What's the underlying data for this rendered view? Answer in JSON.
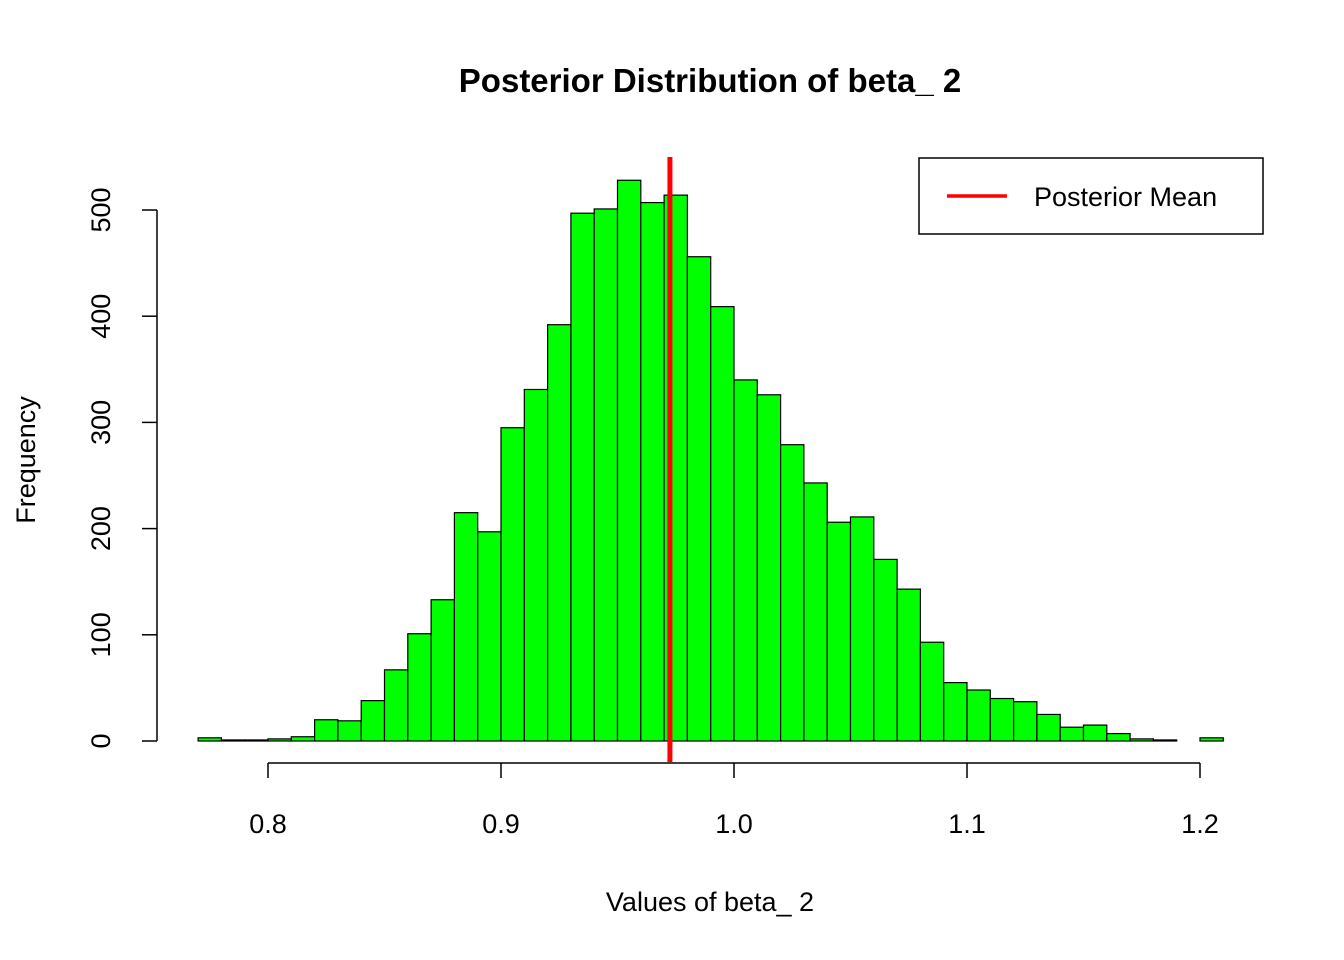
{
  "chart_data": {
    "type": "bar",
    "title": "Posterior Distribution of beta_ 2",
    "xlabel": "Values of beta_ 2",
    "ylabel": "Frequency",
    "bin_width": 0.01,
    "bin_starts": [
      0.77,
      0.78,
      0.79,
      0.8,
      0.81,
      0.82,
      0.83,
      0.84,
      0.85,
      0.86,
      0.87,
      0.88,
      0.89,
      0.9,
      0.91,
      0.92,
      0.93,
      0.94,
      0.95,
      0.96,
      0.97,
      0.98,
      0.99,
      1.0,
      1.01,
      1.02,
      1.03,
      1.04,
      1.05,
      1.06,
      1.07,
      1.08,
      1.09,
      1.1,
      1.11,
      1.12,
      1.13,
      1.14,
      1.15,
      1.16,
      1.17,
      1.18,
      1.19,
      1.2
    ],
    "values": [
      3,
      1,
      1,
      2,
      4,
      20,
      19,
      38,
      67,
      101,
      133,
      215,
      197,
      295,
      331,
      392,
      497,
      501,
      528,
      507,
      514,
      456,
      409,
      340,
      326,
      279,
      243,
      206,
      211,
      171,
      143,
      93,
      55,
      48,
      40,
      37,
      25,
      13,
      15,
      7,
      2,
      1,
      0,
      3
    ],
    "xlim": [
      0.75,
      1.22
    ],
    "ylim": [
      0,
      560
    ],
    "x_ticks": [
      "0.8",
      "0.9",
      "1.0",
      "1.1",
      "1.2"
    ],
    "y_ticks": [
      "0",
      "100",
      "200",
      "300",
      "400",
      "500"
    ],
    "posterior_mean": 0.9725,
    "colors": {
      "bars": "#00ff00",
      "mean_line": "#ff0000",
      "bar_border": "#000000"
    },
    "legend": {
      "placement": "top-right",
      "entries": [
        {
          "label": "Posterior Mean",
          "color": "#ff0000"
        }
      ]
    }
  }
}
